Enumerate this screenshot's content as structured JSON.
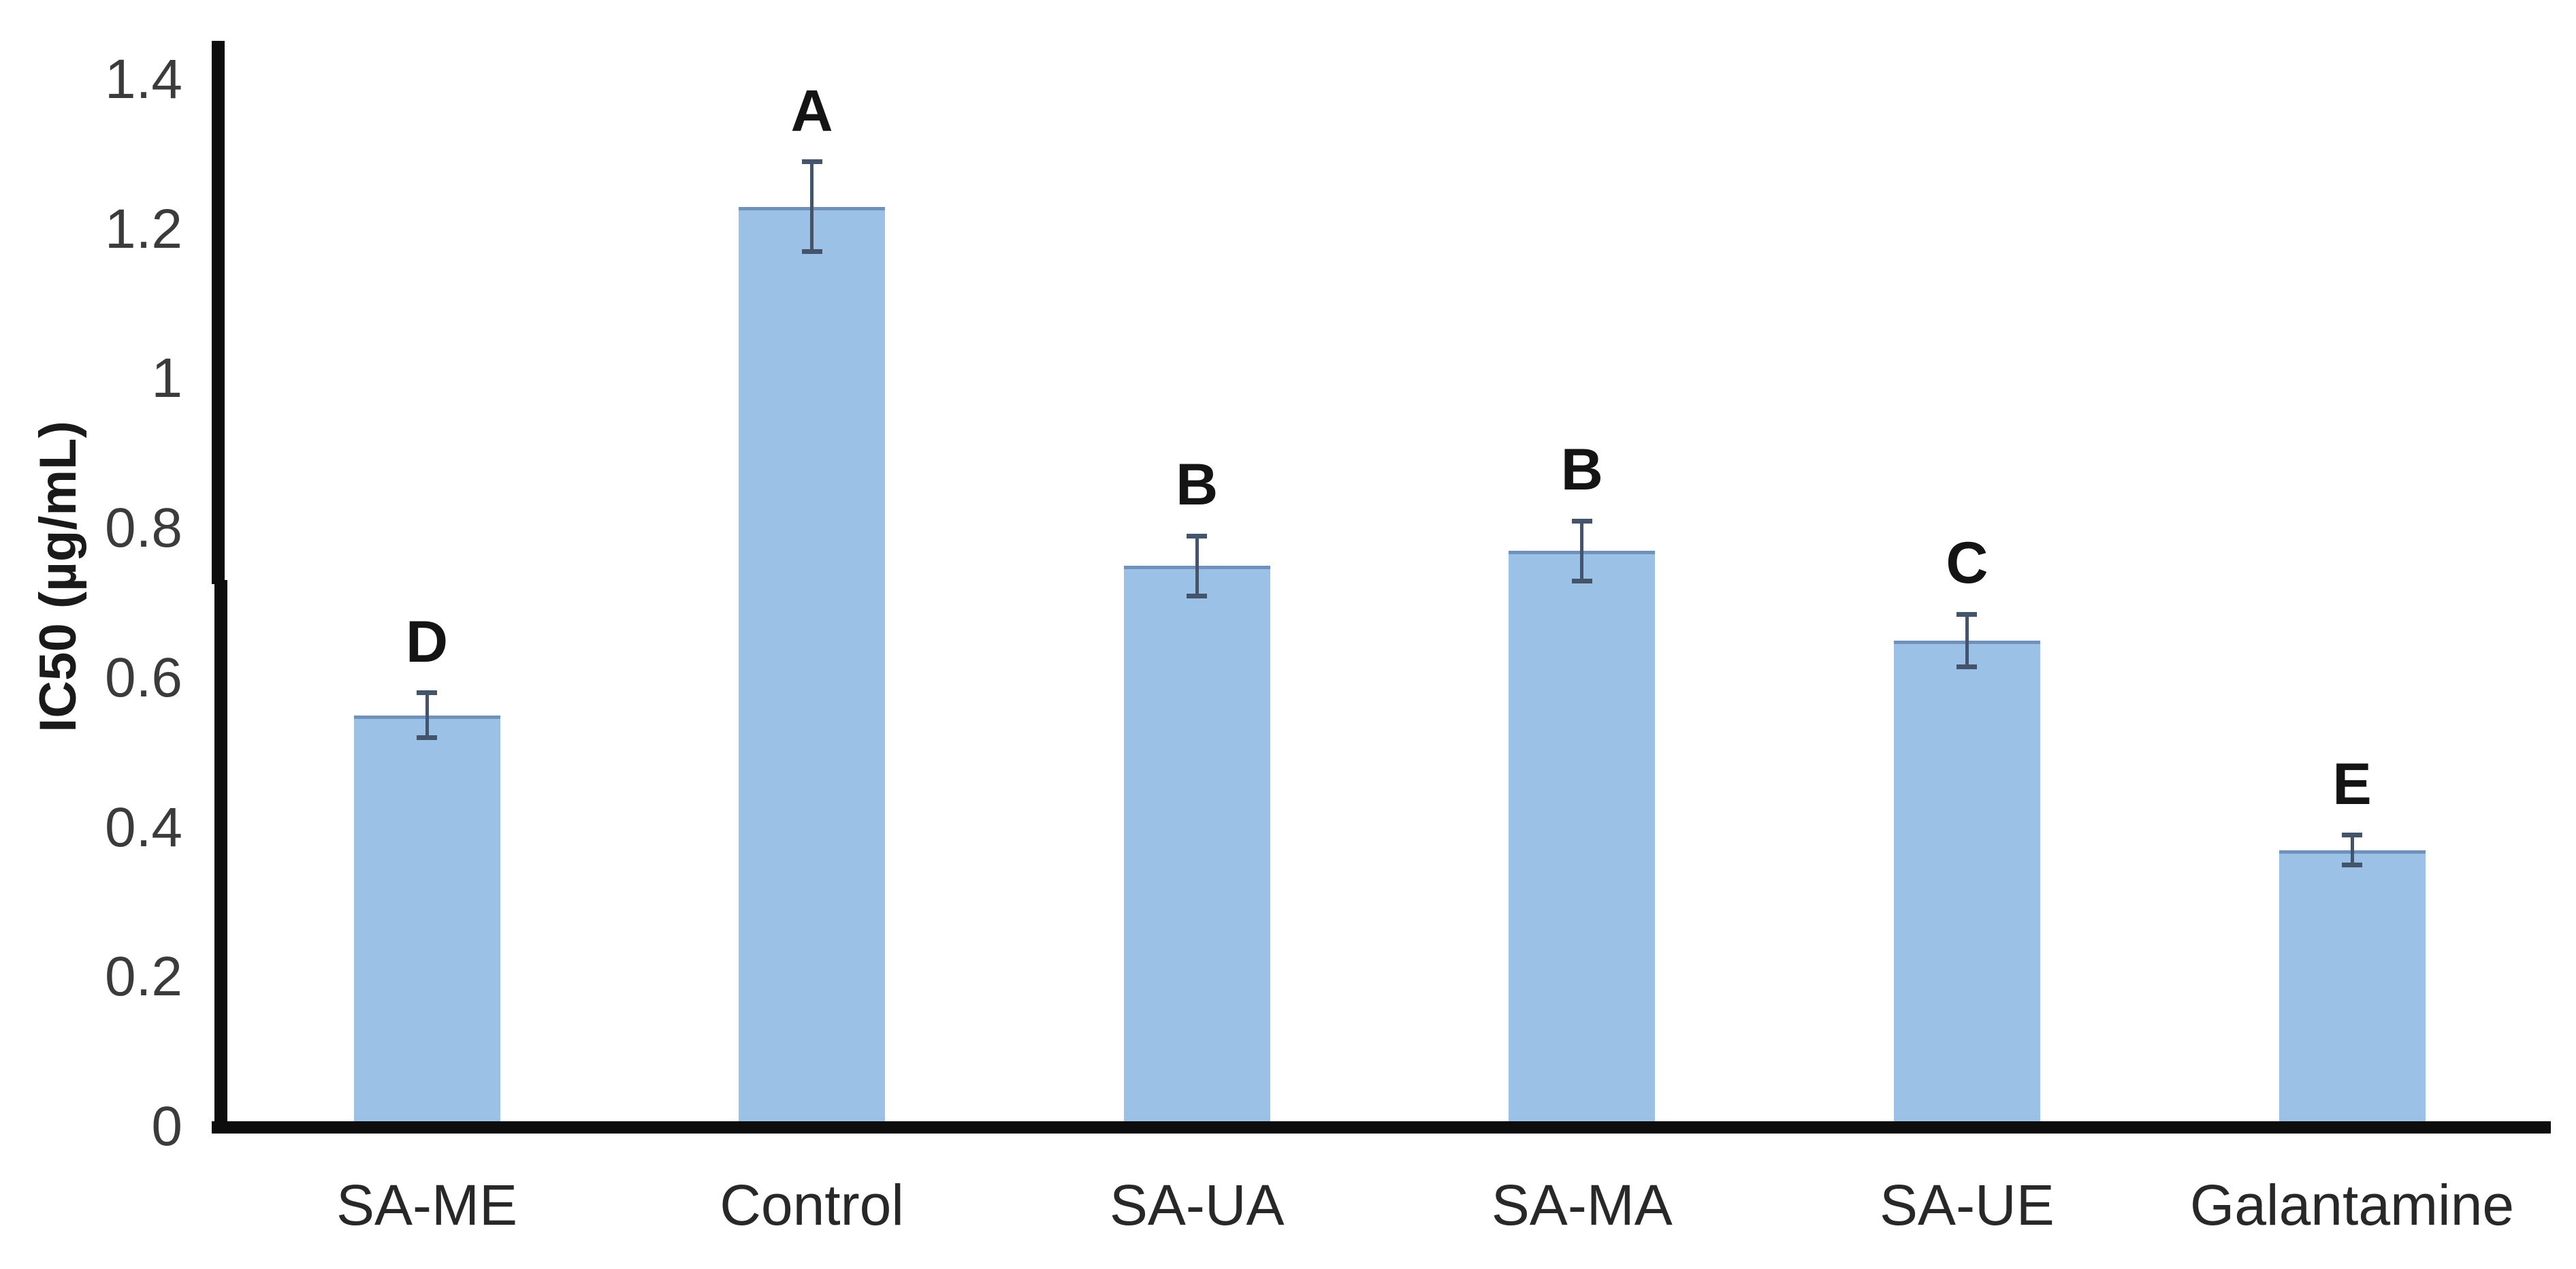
{
  "chart_data": {
    "type": "bar",
    "title": "",
    "ylabel": "IC50 (µg/mL)",
    "xlabel": "",
    "categories": [
      "SA-ME",
      "Control",
      "SA-UA",
      "SA-MA",
      "SA-UE",
      "Galantamine"
    ],
    "values": [
      0.55,
      1.23,
      0.75,
      0.77,
      0.65,
      0.37
    ],
    "errors": [
      0.03,
      0.06,
      0.04,
      0.04,
      0.035,
      0.02
    ],
    "sig_letters": [
      "D",
      "A",
      "B",
      "B",
      "C",
      "E"
    ],
    "ytick_labels": [
      "0",
      "0.2",
      "0.4",
      "0.6",
      "0.8",
      "1",
      "1.2",
      "1.4"
    ],
    "ylim": [
      0,
      1.4
    ],
    "grid": false,
    "legend": "none",
    "bar_color": "#9BC2E6",
    "bar_edge_color": "#6889B1",
    "error_bar_color": "#44546A",
    "axis_color": "#0D0D0D",
    "tick_text_color": "#3B3B3B",
    "letter_color": "#141414"
  }
}
